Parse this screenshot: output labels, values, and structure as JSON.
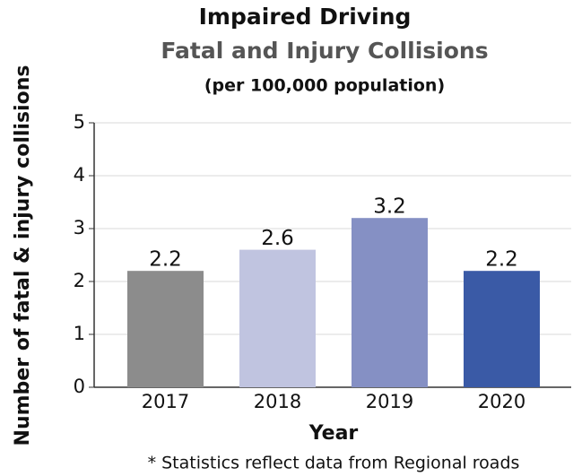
{
  "chart_data": {
    "type": "bar",
    "title": "Impaired Driving",
    "subtitle": "Fatal and Injury Collisions",
    "subtitle2": "(per 100,000 population)",
    "y_label": "Number of fatal & injury collisions",
    "x_label": "Year",
    "footnote": "* Statistics reflect data from Regional roads",
    "categories": [
      "2017",
      "2018",
      "2019",
      "2020"
    ],
    "values": [
      2.2,
      2.6,
      3.2,
      2.2
    ],
    "colors": [
      "#8c8c8c",
      "#c0c4e0",
      "#8590c4",
      "#3a5aa6"
    ],
    "ylim": [
      0,
      5
    ],
    "yticks": [
      0,
      1,
      2,
      3,
      4,
      5
    ],
    "grid": true
  }
}
